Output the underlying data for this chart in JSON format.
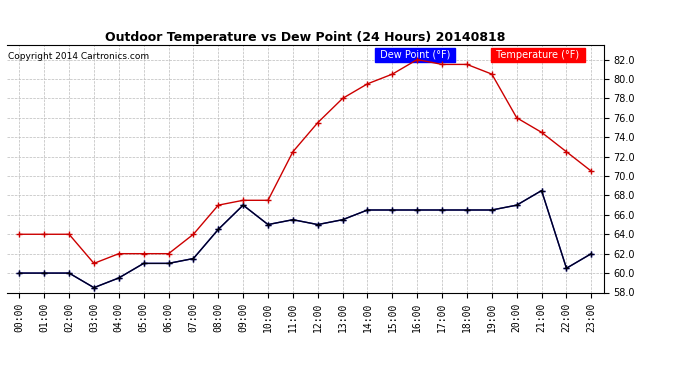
{
  "title": "Outdoor Temperature vs Dew Point (24 Hours) 20140818",
  "copyright": "Copyright 2014 Cartronics.com",
  "hours": [
    "00:00",
    "01:00",
    "02:00",
    "03:00",
    "04:00",
    "05:00",
    "06:00",
    "07:00",
    "08:00",
    "09:00",
    "10:00",
    "11:00",
    "12:00",
    "13:00",
    "14:00",
    "15:00",
    "16:00",
    "17:00",
    "18:00",
    "19:00",
    "20:00",
    "21:00",
    "22:00",
    "23:00"
  ],
  "temperature": [
    64.0,
    64.0,
    64.0,
    61.0,
    62.0,
    62.0,
    62.0,
    64.0,
    67.0,
    67.5,
    67.5,
    72.5,
    75.5,
    78.0,
    79.5,
    80.5,
    82.0,
    81.5,
    81.5,
    80.5,
    76.0,
    74.5,
    72.5,
    70.5
  ],
  "dew_point": [
    60.0,
    60.0,
    60.0,
    58.5,
    59.5,
    61.0,
    61.0,
    61.5,
    64.5,
    67.0,
    65.0,
    65.5,
    65.0,
    65.5,
    66.5,
    66.5,
    66.5,
    66.5,
    66.5,
    66.5,
    67.0,
    68.5,
    60.5,
    62.0
  ],
  "temp_color": "#cc0000",
  "dew_color": "#0000cc",
  "black_color": "#000000",
  "ylim_min": 58.0,
  "ylim_max": 83.5,
  "yticks": [
    58.0,
    60.0,
    62.0,
    64.0,
    66.0,
    68.0,
    70.0,
    72.0,
    74.0,
    76.0,
    78.0,
    80.0,
    82.0
  ],
  "bg_color": "#ffffff",
  "grid_color": "#bbbbbb",
  "legend_dew_bg": "#0000ff",
  "legend_temp_bg": "#ff0000",
  "legend_text_color": "#ffffff",
  "figwidth": 6.9,
  "figheight": 3.75,
  "dpi": 100
}
